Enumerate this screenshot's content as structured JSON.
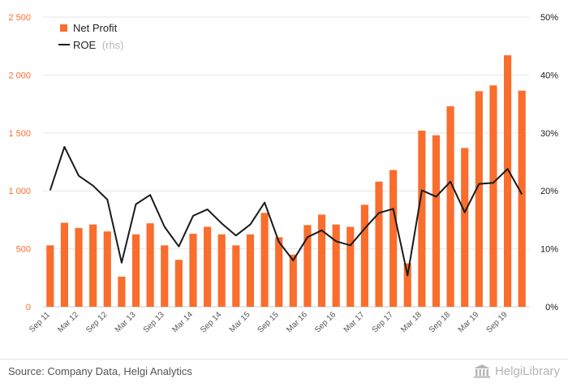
{
  "colors": {
    "bar": "#f96d2d",
    "line": "#1a1a1a",
    "left_axis_text": "#f96d2d",
    "right_axis_text": "#1a1a1a",
    "grid": "#e6e6e6"
  },
  "legend": {
    "net_profit": "Net Profit",
    "roe": "ROE",
    "roe_suffix": "(rhs)"
  },
  "footer": {
    "source": "Source: Company Data, Helgi Analytics",
    "brand": "HelgiLibrary",
    "brand_icon": "library-building-icon"
  },
  "chart_data": {
    "type": "bar",
    "title": "",
    "xlabel": "",
    "ylabel": "",
    "legend_position": "top-left",
    "grid": true,
    "categories": [
      "Sep 11",
      "Dec 11",
      "Mar 12",
      "Jun 12",
      "Sep 12",
      "Dec 12",
      "Mar 13",
      "Jun 13",
      "Sep 13",
      "Dec 13",
      "Mar 14",
      "Jun 14",
      "Sep 14",
      "Dec 14",
      "Mar 15",
      "Jun 15",
      "Sep 15",
      "Dec 15",
      "Mar 16",
      "Jun 16",
      "Sep 16",
      "Dec 16",
      "Mar 17",
      "Jun 17",
      "Sep 17",
      "Dec 17",
      "Mar 18",
      "Jun 18",
      "Sep 18",
      "Dec 18",
      "Mar 19",
      "Jun 19",
      "Sep 19",
      "Dec 19"
    ],
    "x_tick_labels": [
      "Sep 11",
      "Mar 12",
      "Sep 12",
      "Mar 13",
      "Sep 13",
      "Mar 14",
      "Sep 14",
      "Mar 15",
      "Sep 15",
      "Mar 16",
      "Sep 16",
      "Mar 17",
      "Sep 17",
      "Mar 18",
      "Sep 18",
      "Mar 19",
      "Sep 19"
    ],
    "ylim": [
      0,
      2500
    ],
    "y_ticks": [
      "0",
      "500",
      "1 000",
      "1 500",
      "2 000",
      "2 500"
    ],
    "y2lim": [
      0,
      50
    ],
    "y2_ticks": [
      "0%",
      "10%",
      "20%",
      "30%",
      "40%",
      "50%"
    ],
    "series": [
      {
        "name": "Net Profit",
        "type": "bar",
        "axis": "left",
        "values": [
          530,
          725,
          680,
          710,
          650,
          260,
          625,
          720,
          530,
          405,
          630,
          690,
          625,
          530,
          625,
          810,
          600,
          450,
          705,
          795,
          710,
          690,
          880,
          1080,
          1180,
          375,
          1520,
          1480,
          1730,
          1370,
          1860,
          1910,
          2170,
          1865
        ]
      },
      {
        "name": "ROE",
        "type": "line",
        "axis": "right",
        "values": [
          20.1,
          27.6,
          22.6,
          20.9,
          18.5,
          7.6,
          17.7,
          19.3,
          13.8,
          10.4,
          15.7,
          16.8,
          14.4,
          12.3,
          14.2,
          18.0,
          11.2,
          8.0,
          12.0,
          13.2,
          11.3,
          10.6,
          13.5,
          16.2,
          16.9,
          5.4,
          20.1,
          19.0,
          21.6,
          16.3,
          21.2,
          21.4,
          23.8,
          19.4
        ]
      }
    ]
  }
}
